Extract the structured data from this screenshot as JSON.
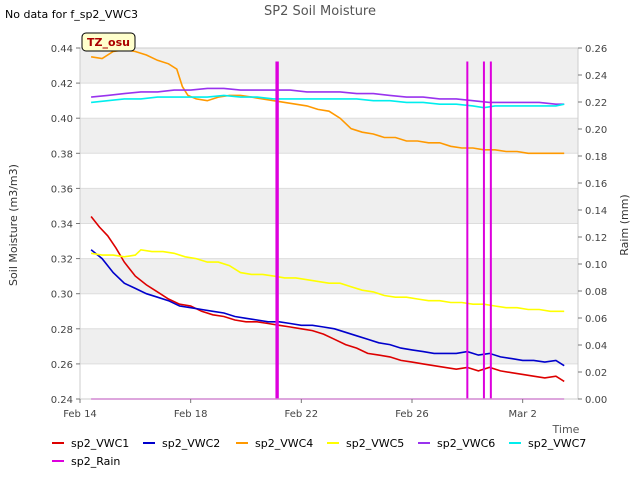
{
  "chart_data": {
    "type": "line",
    "title": "SP2 Soil Moisture",
    "nodata_note": "No data for f_sp2_VWC3",
    "site_badge": "TZ_osu",
    "xlabel": "Time",
    "ylabel": "Soil Moisture (m3/m3)",
    "y2label": "Raim (mm)",
    "xlim": [
      0,
      18
    ],
    "ylim": [
      0.24,
      0.44
    ],
    "y2lim": [
      0.0,
      0.26
    ],
    "xticks": [
      {
        "value": 0,
        "label": "Feb 14"
      },
      {
        "value": 4,
        "label": "Feb 18"
      },
      {
        "value": 8,
        "label": "Feb 22"
      },
      {
        "value": 12,
        "label": "Feb 26"
      },
      {
        "value": 16,
        "label": "Mar 2"
      }
    ],
    "yticks": [
      0.24,
      0.26,
      0.28,
      0.3,
      0.32,
      0.34,
      0.36,
      0.38,
      0.4,
      0.42,
      0.44
    ],
    "y2ticks": [
      0.0,
      0.02,
      0.04,
      0.06,
      0.08,
      0.1,
      0.12,
      0.14,
      0.16,
      0.18,
      0.2,
      0.22,
      0.24,
      0.26
    ],
    "series": [
      {
        "name": "sp2_VWC1",
        "color": "#dd0000",
        "axis": "left",
        "x": [
          0.4,
          0.7,
          1.0,
          1.3,
          1.6,
          2.0,
          2.4,
          2.8,
          3.2,
          3.6,
          4.0,
          4.4,
          4.8,
          5.2,
          5.6,
          6.0,
          6.4,
          6.8,
          7.2,
          7.6,
          8.0,
          8.4,
          8.8,
          9.2,
          9.6,
          10.0,
          10.4,
          10.8,
          11.2,
          11.6,
          12.0,
          12.4,
          12.8,
          13.2,
          13.6,
          14.0,
          14.4,
          14.8,
          15.2,
          15.6,
          16.0,
          16.4,
          16.8,
          17.2,
          17.5
        ],
        "values": [
          0.344,
          0.338,
          0.333,
          0.326,
          0.318,
          0.31,
          0.305,
          0.301,
          0.297,
          0.294,
          0.293,
          0.29,
          0.288,
          0.287,
          0.285,
          0.284,
          0.284,
          0.283,
          0.282,
          0.281,
          0.28,
          0.279,
          0.277,
          0.274,
          0.271,
          0.269,
          0.266,
          0.265,
          0.264,
          0.262,
          0.261,
          0.26,
          0.259,
          0.258,
          0.257,
          0.258,
          0.256,
          0.258,
          0.256,
          0.255,
          0.254,
          0.253,
          0.252,
          0.253,
          0.25
        ]
      },
      {
        "name": "sp2_VWC2",
        "color": "#0000cc",
        "axis": "left",
        "x": [
          0.4,
          0.8,
          1.2,
          1.6,
          2.0,
          2.4,
          2.8,
          3.2,
          3.6,
          4.0,
          4.4,
          4.8,
          5.2,
          5.6,
          6.0,
          6.4,
          6.8,
          7.2,
          7.6,
          8.0,
          8.4,
          8.8,
          9.2,
          9.6,
          10.0,
          10.4,
          10.8,
          11.2,
          11.6,
          12.0,
          12.4,
          12.8,
          13.2,
          13.6,
          14.0,
          14.4,
          14.8,
          15.2,
          15.6,
          16.0,
          16.4,
          16.8,
          17.2,
          17.5
        ],
        "values": [
          0.325,
          0.32,
          0.312,
          0.306,
          0.303,
          0.3,
          0.298,
          0.296,
          0.293,
          0.292,
          0.291,
          0.29,
          0.289,
          0.287,
          0.286,
          0.285,
          0.284,
          0.284,
          0.283,
          0.282,
          0.282,
          0.281,
          0.28,
          0.278,
          0.276,
          0.274,
          0.272,
          0.271,
          0.269,
          0.268,
          0.267,
          0.266,
          0.266,
          0.266,
          0.267,
          0.265,
          0.266,
          0.264,
          0.263,
          0.262,
          0.262,
          0.261,
          0.262,
          0.259
        ]
      },
      {
        "name": "sp2_VWC4",
        "color": "#ff9900",
        "axis": "left",
        "x": [
          0.4,
          0.8,
          1.2,
          1.6,
          2.0,
          2.4,
          2.8,
          3.2,
          3.5,
          3.7,
          3.9,
          4.2,
          4.6,
          5.0,
          5.4,
          5.8,
          6.2,
          6.6,
          7.0,
          7.4,
          7.8,
          8.2,
          8.6,
          9.0,
          9.4,
          9.8,
          10.2,
          10.6,
          11.0,
          11.4,
          11.8,
          12.2,
          12.6,
          13.0,
          13.4,
          13.8,
          14.2,
          14.6,
          15.0,
          15.4,
          15.8,
          16.2,
          16.6,
          17.0,
          17.5
        ],
        "values": [
          0.435,
          0.434,
          0.438,
          0.439,
          0.438,
          0.436,
          0.433,
          0.431,
          0.428,
          0.418,
          0.413,
          0.411,
          0.41,
          0.412,
          0.413,
          0.413,
          0.412,
          0.411,
          0.41,
          0.409,
          0.408,
          0.407,
          0.405,
          0.404,
          0.4,
          0.394,
          0.392,
          0.391,
          0.389,
          0.389,
          0.387,
          0.387,
          0.386,
          0.386,
          0.384,
          0.383,
          0.383,
          0.382,
          0.382,
          0.381,
          0.381,
          0.38,
          0.38,
          0.38,
          0.38
        ]
      },
      {
        "name": "sp2_VWC5",
        "color": "#ffff00",
        "axis": "left",
        "x": [
          0.4,
          0.8,
          1.2,
          1.6,
          2.0,
          2.2,
          2.6,
          3.0,
          3.4,
          3.8,
          4.2,
          4.6,
          5.0,
          5.4,
          5.8,
          6.2,
          6.6,
          7.0,
          7.4,
          7.8,
          8.2,
          8.6,
          9.0,
          9.4,
          9.8,
          10.2,
          10.6,
          11.0,
          11.4,
          11.8,
          12.2,
          12.6,
          13.0,
          13.4,
          13.8,
          14.2,
          14.6,
          15.0,
          15.4,
          15.8,
          16.2,
          16.6,
          17.0,
          17.5
        ],
        "values": [
          0.323,
          0.322,
          0.322,
          0.321,
          0.322,
          0.325,
          0.324,
          0.324,
          0.323,
          0.321,
          0.32,
          0.318,
          0.318,
          0.316,
          0.312,
          0.311,
          0.311,
          0.31,
          0.309,
          0.309,
          0.308,
          0.307,
          0.306,
          0.306,
          0.304,
          0.302,
          0.301,
          0.299,
          0.298,
          0.298,
          0.297,
          0.296,
          0.296,
          0.295,
          0.295,
          0.294,
          0.294,
          0.293,
          0.292,
          0.292,
          0.291,
          0.291,
          0.29,
          0.29
        ]
      },
      {
        "name": "sp2_VWC6",
        "color": "#9933ee",
        "axis": "left",
        "x": [
          0.4,
          1.0,
          1.6,
          2.2,
          2.8,
          3.4,
          4.0,
          4.6,
          5.2,
          5.8,
          6.4,
          7.0,
          7.6,
          8.2,
          8.8,
          9.4,
          10.0,
          10.6,
          11.2,
          11.8,
          12.4,
          13.0,
          13.6,
          14.2,
          14.8,
          15.4,
          16.0,
          16.6,
          17.2,
          17.5
        ],
        "values": [
          0.412,
          0.413,
          0.414,
          0.415,
          0.415,
          0.416,
          0.416,
          0.417,
          0.417,
          0.416,
          0.416,
          0.416,
          0.416,
          0.415,
          0.415,
          0.415,
          0.414,
          0.414,
          0.413,
          0.412,
          0.412,
          0.411,
          0.411,
          0.41,
          0.409,
          0.409,
          0.409,
          0.409,
          0.408,
          0.408
        ]
      },
      {
        "name": "sp2_VWC7",
        "color": "#00eeee",
        "axis": "left",
        "x": [
          0.4,
          1.0,
          1.6,
          2.2,
          2.8,
          3.4,
          4.0,
          4.6,
          5.2,
          5.8,
          6.4,
          7.0,
          7.6,
          8.2,
          8.8,
          9.4,
          10.0,
          10.6,
          11.2,
          11.8,
          12.4,
          13.0,
          13.6,
          14.2,
          14.6,
          15.0,
          15.4,
          16.0,
          16.6,
          17.2,
          17.5
        ],
        "values": [
          0.409,
          0.41,
          0.411,
          0.411,
          0.412,
          0.412,
          0.412,
          0.412,
          0.413,
          0.412,
          0.412,
          0.411,
          0.411,
          0.411,
          0.411,
          0.411,
          0.411,
          0.41,
          0.41,
          0.409,
          0.409,
          0.408,
          0.408,
          0.407,
          0.406,
          0.407,
          0.407,
          0.407,
          0.407,
          0.407,
          0.408
        ]
      },
      {
        "name": "sp2_Rain",
        "color": "#dd00dd",
        "axis": "right",
        "kind": "bars",
        "x": [
          7.1,
          7.15,
          14.0,
          14.6,
          14.85
        ],
        "values": [
          0.25,
          0.25,
          0.25,
          0.25,
          0.25
        ]
      }
    ]
  }
}
